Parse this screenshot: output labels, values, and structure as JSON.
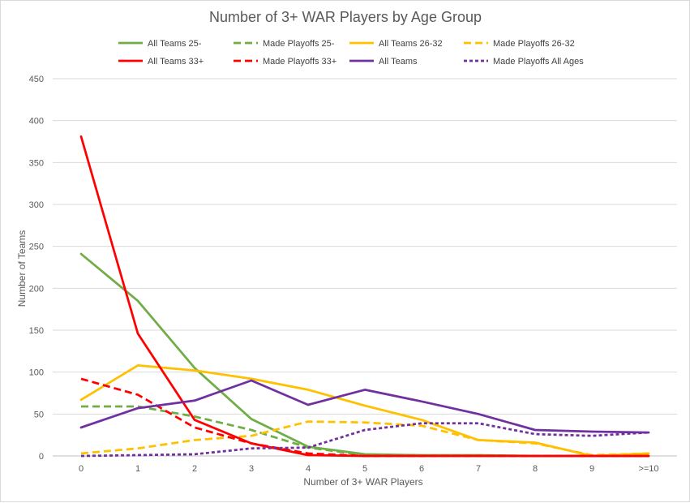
{
  "chart_data": {
    "type": "line",
    "title": "Number of 3+ WAR Players by Age Group",
    "xlabel": "Number of 3+ WAR Players",
    "ylabel": "Number of Teams",
    "categories": [
      "0",
      "1",
      "2",
      "3",
      "4",
      "5",
      "6",
      "7",
      "8",
      "9",
      ">=10"
    ],
    "ylim": [
      0,
      450
    ],
    "yticks": [
      0,
      50,
      100,
      150,
      200,
      250,
      300,
      350,
      400,
      450
    ],
    "grid": true,
    "legend_position": "top",
    "series": [
      {
        "name": "All Teams 25-",
        "color": "#70ad47",
        "dash": "solid",
        "values": [
          241,
          185,
          105,
          44,
          11,
          2,
          1,
          1,
          0,
          0,
          0
        ]
      },
      {
        "name": "Made Playoffs 25-",
        "color": "#70ad47",
        "dash": "dashed",
        "values": [
          59,
          59,
          47,
          31,
          10,
          1,
          0,
          0,
          0,
          0,
          0
        ]
      },
      {
        "name": "All Teams 26-32",
        "color": "#ffc000",
        "dash": "solid",
        "values": [
          67,
          108,
          102,
          92,
          79,
          60,
          43,
          19,
          16,
          0,
          3
        ]
      },
      {
        "name": "Made Playoffs 26-32",
        "color": "#ffc000",
        "dash": "dashed",
        "values": [
          3,
          9,
          19,
          24,
          41,
          40,
          36,
          19,
          15,
          1,
          3
        ]
      },
      {
        "name": "All Teams 33+",
        "color": "#ff0000",
        "dash": "solid",
        "values": [
          381,
          146,
          43,
          15,
          1,
          0,
          0,
          0,
          0,
          0,
          0
        ]
      },
      {
        "name": "Made Playoffs 33+",
        "color": "#ff0000",
        "dash": "dashed",
        "values": [
          92,
          73,
          34,
          15,
          3,
          0,
          0,
          0,
          0,
          0,
          0
        ]
      },
      {
        "name": "All Teams",
        "color": "#7030a0",
        "dash": "solid",
        "values": [
          34,
          57,
          66,
          90,
          61,
          79,
          65,
          50,
          31,
          29,
          28
        ]
      },
      {
        "name": "Made Playoffs All Ages",
        "color": "#7030a0",
        "dash": "dotted",
        "values": [
          0,
          1,
          2,
          9,
          10,
          31,
          39,
          39,
          26,
          24,
          28
        ]
      }
    ]
  }
}
